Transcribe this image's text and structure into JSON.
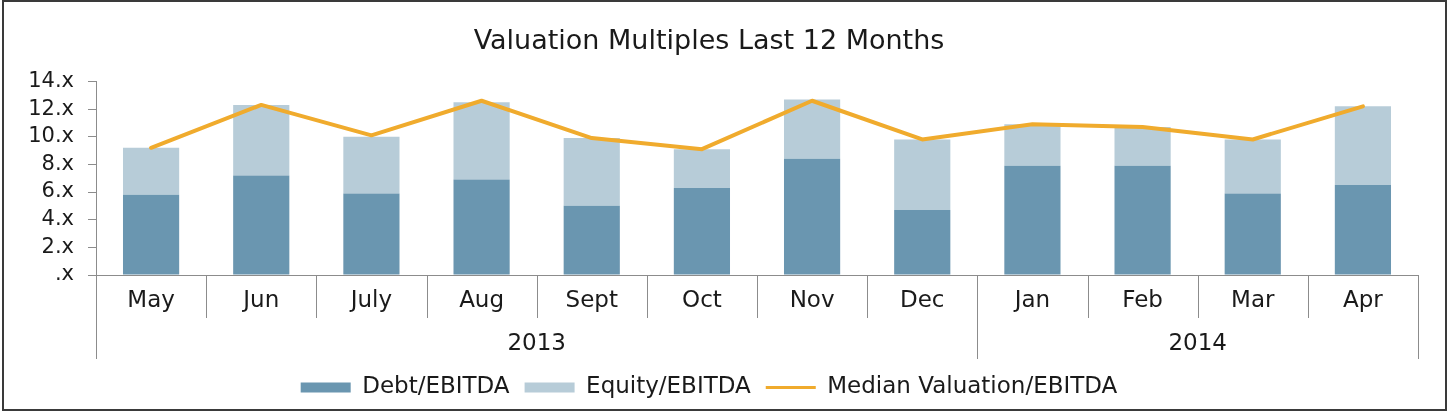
{
  "chart_data": {
    "type": "bar",
    "title": "Valuation Multiples Last 12 Months",
    "categories": [
      "May",
      "Jun",
      "July",
      "Aug",
      "Sept",
      "Oct",
      "Nov",
      "Dec",
      "Jan",
      "Feb",
      "Mar",
      "Apr"
    ],
    "series": [
      {
        "name": "Debt/EBITDA",
        "color": "#6a96b0",
        "values": [
          5.8,
          7.2,
          5.9,
          6.9,
          5.0,
          6.3,
          8.4,
          4.7,
          7.9,
          7.9,
          5.9,
          6.5
        ]
      },
      {
        "name": "Equity/EBITDA",
        "color": "#b7ccd8",
        "values": [
          3.4,
          5.1,
          4.1,
          5.6,
          4.9,
          2.8,
          4.3,
          5.1,
          3.0,
          2.8,
          3.9,
          5.7
        ]
      },
      {
        "name": "Median Valuation/EBITDA",
        "type": "line",
        "color": "#f0ab2d",
        "values": [
          9.2,
          12.3,
          10.1,
          12.6,
          9.9,
          9.1,
          12.6,
          9.8,
          10.9,
          10.7,
          9.8,
          12.2
        ]
      }
    ],
    "stacked": true,
    "ylim": [
      0,
      14
    ],
    "yticks": [
      {
        "value": 0,
        "label": ".x"
      },
      {
        "value": 2,
        "label": "2.x"
      },
      {
        "value": 4,
        "label": "4.x"
      },
      {
        "value": 6,
        "label": "6.x"
      },
      {
        "value": 8,
        "label": "8.x"
      },
      {
        "value": 10,
        "label": "10.x"
      },
      {
        "value": 12,
        "label": "12.x"
      },
      {
        "value": 14,
        "label": "14.x"
      }
    ],
    "legend": "bottom",
    "marker": "none",
    "line_style": "solid",
    "annotations": [
      "2013",
      "2014"
    ]
  }
}
